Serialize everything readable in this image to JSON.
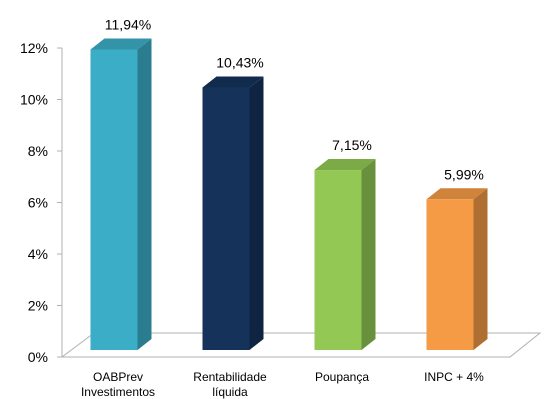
{
  "chart_data": {
    "type": "bar",
    "style": "3d-column",
    "categories": [
      [
        "OABPrev",
        "Investimentos"
      ],
      [
        "Rentabilidade",
        "líquida"
      ],
      [
        "Poupança"
      ],
      [
        "INPC + 4%"
      ]
    ],
    "values": [
      11.94,
      10.43,
      7.15,
      5.99
    ],
    "data_labels": [
      "11,94%",
      "10,43%",
      "7,15%",
      "5,99%"
    ],
    "colors": [
      "#3BADC7",
      "#14325A",
      "#92C853",
      "#F59A45"
    ],
    "ylim": [
      0,
      12
    ],
    "yticks": [
      0,
      2,
      4,
      6,
      8,
      10,
      12
    ],
    "ytick_labels": [
      "0%",
      "2%",
      "4%",
      "6%",
      "8%",
      "10%",
      "12%"
    ],
    "grid": false,
    "legend": "none"
  }
}
